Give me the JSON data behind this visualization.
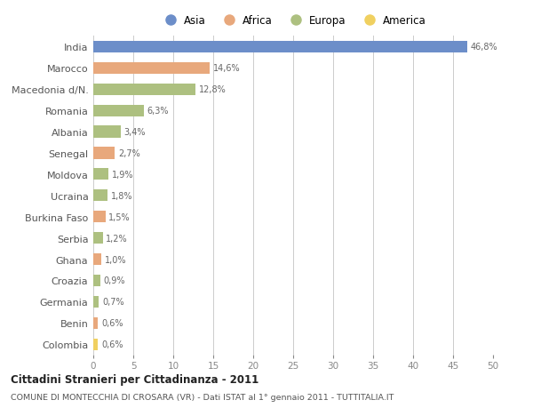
{
  "countries": [
    "India",
    "Marocco",
    "Macedonia d/N.",
    "Romania",
    "Albania",
    "Senegal",
    "Moldova",
    "Ucraina",
    "Burkina Faso",
    "Serbia",
    "Ghana",
    "Croazia",
    "Germania",
    "Benin",
    "Colombia"
  ],
  "values": [
    46.8,
    14.6,
    12.8,
    6.3,
    3.4,
    2.7,
    1.9,
    1.8,
    1.5,
    1.2,
    1.0,
    0.9,
    0.7,
    0.6,
    0.6
  ],
  "labels": [
    "46,8%",
    "14,6%",
    "12,8%",
    "6,3%",
    "3,4%",
    "2,7%",
    "1,9%",
    "1,8%",
    "1,5%",
    "1,2%",
    "1,0%",
    "0,9%",
    "0,7%",
    "0,6%",
    "0,6%"
  ],
  "continents": [
    "Asia",
    "Africa",
    "Europa",
    "Europa",
    "Europa",
    "Africa",
    "Europa",
    "Europa",
    "Africa",
    "Europa",
    "Africa",
    "Europa",
    "Europa",
    "Africa",
    "America"
  ],
  "colors": {
    "Asia": "#6c8ec9",
    "Africa": "#e8a87c",
    "Europa": "#adc080",
    "America": "#f0d060"
  },
  "legend_order": [
    "Asia",
    "Africa",
    "Europa",
    "America"
  ],
  "title": "Cittadini Stranieri per Cittadinanza - 2011",
  "subtitle": "COMUNE DI MONTECCHIA DI CROSARA (VR) - Dati ISTAT al 1° gennaio 2011 - TUTTITALIA.IT",
  "xlim": [
    0,
    50
  ],
  "xticks": [
    0,
    5,
    10,
    15,
    20,
    25,
    30,
    35,
    40,
    45,
    50
  ],
  "bg_color": "#ffffff",
  "grid_color": "#cccccc"
}
